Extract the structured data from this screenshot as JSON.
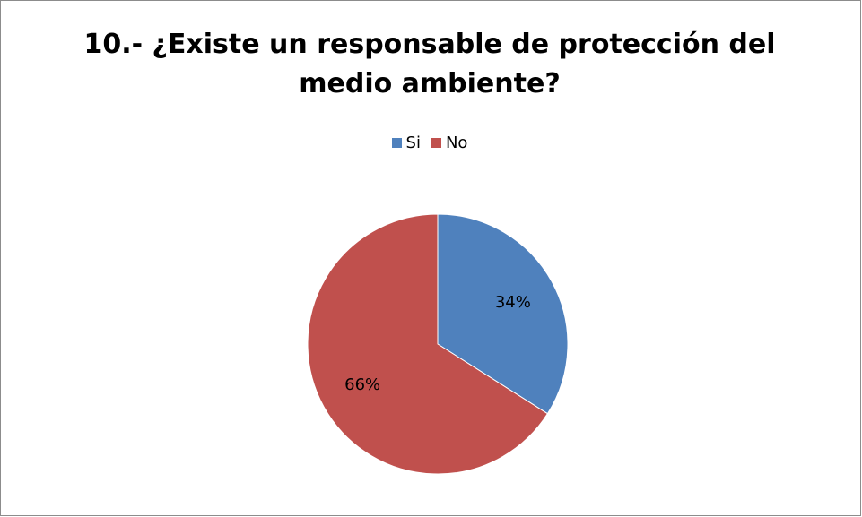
{
  "chart_data": {
    "type": "pie",
    "title": "10.- ¿Existe un responsable de protección del medio ambiente?",
    "title_lines": [
      "10.- ¿Existe un responsable de protección del",
      "medio ambiente?"
    ],
    "categories": [
      "Si",
      "No"
    ],
    "values": [
      34,
      66
    ],
    "data_labels": [
      "34%",
      "66%"
    ],
    "colors": [
      "#4f81bd",
      "#c0504d"
    ],
    "legend_position": "top"
  }
}
